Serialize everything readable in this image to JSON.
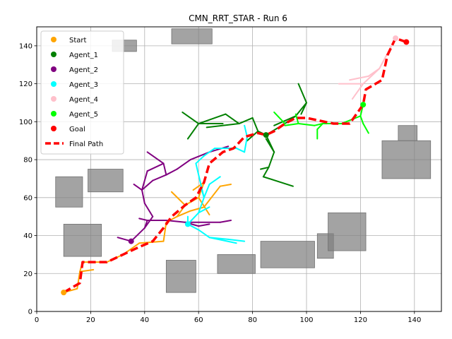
{
  "chart_data": {
    "type": "line",
    "title": "CMN_RRT_STAR - Run 6",
    "xlabel": "",
    "ylabel": "",
    "xlim": [
      0,
      150
    ],
    "ylim": [
      0,
      150
    ],
    "xticks": [
      "0",
      "20",
      "40",
      "60",
      "80",
      "100",
      "120",
      "140"
    ],
    "yticks": [
      "0",
      "20",
      "40",
      "60",
      "80",
      "100",
      "120",
      "140"
    ],
    "grid": true,
    "legend_placement": "top-left",
    "colors": {
      "start": "#ffa500",
      "agent_1": "#008000",
      "agent_2": "#800080",
      "agent_3": "#00ffff",
      "agent_4": "#ffc0cb",
      "agent_5": "#00ff00",
      "goal": "#ff0000",
      "final_path": "#ff0000",
      "obstacle": "#808080"
    },
    "legend": [
      {
        "label": "Start",
        "kind": "marker",
        "color": "#ffa500"
      },
      {
        "label": "Agent_1",
        "kind": "marker",
        "color": "#008000"
      },
      {
        "label": "Agent_2",
        "kind": "marker",
        "color": "#800080"
      },
      {
        "label": "Agent_3",
        "kind": "marker",
        "color": "#00ffff"
      },
      {
        "label": "Agent_4",
        "kind": "marker",
        "color": "#ffc0cb"
      },
      {
        "label": "Agent_5",
        "kind": "marker",
        "color": "#00ff00"
      },
      {
        "label": "Goal",
        "kind": "marker",
        "color": "#ff0000"
      },
      {
        "label": "Final Path",
        "kind": "dashed-line",
        "color": "#ff0000"
      }
    ],
    "obstacles": [
      [
        28,
        137,
        9,
        6
      ],
      [
        50,
        141,
        15,
        8
      ],
      [
        7,
        55,
        10,
        16
      ],
      [
        19,
        63,
        13,
        12
      ],
      [
        10,
        29,
        14,
        17
      ],
      [
        48,
        10,
        11,
        17
      ],
      [
        67,
        20,
        14,
        10
      ],
      [
        83,
        23,
        20,
        14
      ],
      [
        104,
        28,
        6,
        13
      ],
      [
        108,
        32,
        14,
        20
      ],
      [
        128,
        70,
        18,
        20
      ],
      [
        134,
        90,
        7,
        8
      ]
    ],
    "points": [
      {
        "name": "Start",
        "x": 10,
        "y": 10,
        "color": "#ffa500"
      },
      {
        "name": "Agent_1",
        "x": 85,
        "y": 93,
        "color": "#008000"
      },
      {
        "name": "Agent_2",
        "x": 35,
        "y": 37,
        "color": "#800080"
      },
      {
        "name": "Agent_3",
        "x": 56,
        "y": 46,
        "color": "#00ffff"
      },
      {
        "name": "Agent_4",
        "x": 133,
        "y": 144,
        "color": "#ffc0cb"
      },
      {
        "name": "Agent_5",
        "x": 121,
        "y": 109,
        "color": "#00ff00"
      },
      {
        "name": "Goal",
        "x": 137,
        "y": 142,
        "color": "#ff0000"
      }
    ],
    "trees": [
      {
        "color": "#ffa500",
        "segments": [
          [
            10,
            10,
            15,
            12
          ],
          [
            15,
            12,
            16,
            21
          ],
          [
            16,
            21,
            21,
            22
          ],
          [
            16,
            21,
            17,
            26
          ],
          [
            17,
            26,
            26,
            26
          ],
          [
            26,
            26,
            32,
            30
          ],
          [
            32,
            30,
            38,
            36
          ],
          [
            38,
            36,
            47,
            37
          ],
          [
            47,
            37,
            48,
            47
          ],
          [
            48,
            47,
            52,
            50
          ],
          [
            52,
            50,
            55,
            56
          ],
          [
            55,
            56,
            60,
            60
          ],
          [
            60,
            60,
            62,
            68
          ],
          [
            60,
            60,
            64,
            51
          ],
          [
            55,
            56,
            50,
            63
          ],
          [
            52,
            50,
            57,
            53
          ],
          [
            57,
            53,
            62,
            55
          ],
          [
            62,
            55,
            68,
            66
          ],
          [
            68,
            66,
            72,
            67
          ],
          [
            62,
            68,
            58,
            64
          ]
        ]
      },
      {
        "color": "#008000",
        "segments": [
          [
            85,
            93,
            82,
            95
          ],
          [
            82,
            95,
            80,
            102
          ],
          [
            80,
            102,
            75,
            99
          ],
          [
            75,
            99,
            70,
            104
          ],
          [
            70,
            104,
            60,
            99
          ],
          [
            60,
            99,
            54,
            105
          ],
          [
            60,
            99,
            56,
            91
          ],
          [
            60,
            99,
            69,
            99
          ],
          [
            85,
            93,
            88,
            84
          ],
          [
            88,
            84,
            86,
            76
          ],
          [
            86,
            76,
            84,
            71
          ],
          [
            84,
            71,
            95,
            66
          ],
          [
            86,
            76,
            83,
            75
          ],
          [
            88,
            84,
            85,
            91
          ],
          [
            85,
            93,
            92,
            99
          ],
          [
            92,
            99,
            96,
            103
          ],
          [
            96,
            103,
            100,
            110
          ],
          [
            100,
            110,
            97,
            120
          ],
          [
            100,
            110,
            98,
            104
          ],
          [
            96,
            103,
            88,
            98
          ],
          [
            75,
            99,
            63,
            97
          ],
          [
            82,
            95,
            78,
            90
          ]
        ]
      },
      {
        "color": "#800080",
        "segments": [
          [
            35,
            37,
            30,
            39
          ],
          [
            35,
            37,
            40,
            44
          ],
          [
            40,
            44,
            41,
            48
          ],
          [
            41,
            48,
            48,
            48
          ],
          [
            48,
            48,
            55,
            47
          ],
          [
            55,
            47,
            60,
            45
          ],
          [
            60,
            45,
            64,
            46
          ],
          [
            40,
            44,
            43,
            50
          ],
          [
            43,
            50,
            40,
            57
          ],
          [
            40,
            57,
            39,
            64
          ],
          [
            39,
            64,
            43,
            69
          ],
          [
            43,
            69,
            48,
            72
          ],
          [
            48,
            72,
            52,
            75
          ],
          [
            52,
            75,
            57,
            80
          ],
          [
            57,
            80,
            64,
            84
          ],
          [
            64,
            84,
            71,
            87
          ],
          [
            39,
            64,
            36,
            67
          ],
          [
            39,
            64,
            41,
            74
          ],
          [
            41,
            74,
            47,
            78
          ],
          [
            47,
            78,
            41,
            84
          ],
          [
            47,
            78,
            48,
            72
          ],
          [
            41,
            48,
            38,
            49
          ],
          [
            55,
            47,
            68,
            47
          ],
          [
            68,
            47,
            72,
            48
          ]
        ]
      },
      {
        "color": "#00ffff",
        "segments": [
          [
            56,
            46,
            60,
            43
          ],
          [
            60,
            43,
            64,
            39
          ],
          [
            64,
            39,
            71,
            38
          ],
          [
            71,
            38,
            77,
            37
          ],
          [
            56,
            46,
            60,
            52
          ],
          [
            60,
            52,
            62,
            60
          ],
          [
            62,
            60,
            64,
            67
          ],
          [
            64,
            67,
            68,
            71
          ],
          [
            62,
            60,
            61,
            65
          ],
          [
            56,
            46,
            56,
            50
          ],
          [
            60,
            52,
            64,
            55
          ],
          [
            64,
            39,
            74,
            36
          ],
          [
            62,
            60,
            59,
            78
          ],
          [
            59,
            78,
            62,
            82
          ],
          [
            62,
            82,
            66,
            86
          ],
          [
            66,
            86,
            74,
            86
          ],
          [
            74,
            86,
            77,
            84
          ],
          [
            77,
            84,
            78,
            92
          ],
          [
            78,
            92,
            77,
            98
          ]
        ]
      },
      {
        "color": "#ffc0cb",
        "segments": [
          [
            133,
            144,
            130,
            136
          ],
          [
            130,
            136,
            127,
            128
          ],
          [
            127,
            128,
            121,
            120
          ],
          [
            121,
            120,
            117,
            112
          ],
          [
            121,
            120,
            112,
            120
          ],
          [
            127,
            128,
            123,
            124
          ],
          [
            123,
            124,
            116,
            122
          ],
          [
            121,
            120,
            120,
            118
          ]
        ]
      },
      {
        "color": "#00ff00",
        "segments": [
          [
            121,
            109,
            120,
            103
          ],
          [
            120,
            103,
            121,
            99
          ],
          [
            121,
            99,
            123,
            94
          ],
          [
            120,
            103,
            113,
            99
          ],
          [
            113,
            99,
            106,
            99
          ],
          [
            106,
            99,
            103,
            98
          ],
          [
            103,
            98,
            97,
            99
          ],
          [
            97,
            99,
            92,
            98
          ],
          [
            92,
            99,
            88,
            105
          ],
          [
            106,
            99,
            104,
            96
          ],
          [
            104,
            96,
            104,
            91
          ],
          [
            97,
            99,
            96,
            104
          ]
        ]
      }
    ],
    "final_path": {
      "name": "Final Path",
      "x": [
        10,
        16,
        17,
        26,
        32,
        38,
        43,
        47,
        50,
        55,
        59,
        62,
        63,
        64,
        69,
        73,
        77,
        82,
        85,
        88,
        92,
        96,
        100,
        110,
        116,
        121,
        122,
        128,
        130,
        133,
        137
      ],
      "y": [
        10,
        15,
        26,
        26,
        30,
        34,
        37,
        44,
        50,
        56,
        60,
        68,
        73,
        78,
        84,
        86,
        92,
        94,
        93,
        95,
        99,
        102,
        102,
        99,
        99,
        109,
        117,
        122,
        135,
        144,
        142
      ]
    }
  }
}
